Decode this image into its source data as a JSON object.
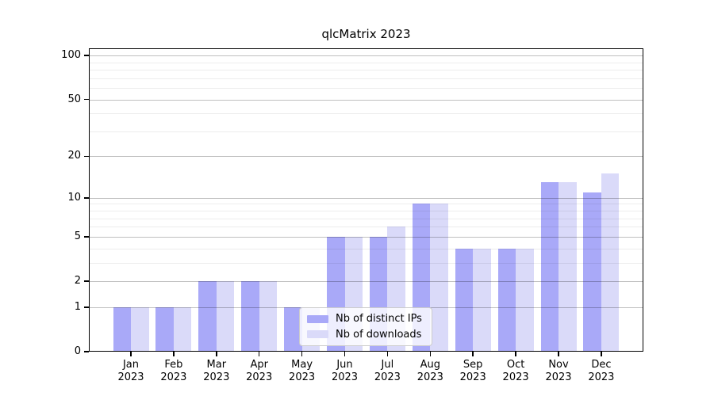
{
  "figure": {
    "background_color": "#ffffff",
    "axis_color": "#000000"
  },
  "chart_data": {
    "type": "bar",
    "title": "qlcMatrix 2023",
    "categories": [
      "Jan",
      "Feb",
      "Mar",
      "Apr",
      "May",
      "Jun",
      "Jul",
      "Aug",
      "Sep",
      "Oct",
      "Nov",
      "Dec"
    ],
    "category_year": "2023",
    "series": [
      {
        "name": "Nb of distinct IPs",
        "color": "#a9a9f8",
        "values": [
          1,
          1,
          2,
          2,
          1,
          5,
          5,
          9,
          4,
          4,
          13,
          11
        ]
      },
      {
        "name": "Nb of downloads",
        "color": "#dadaf9",
        "values": [
          1,
          1,
          2,
          2,
          1,
          5,
          6,
          9,
          4,
          4,
          13,
          15
        ]
      }
    ],
    "xlabel": "",
    "ylabel": "",
    "yscale": "log1p",
    "ylim": [
      0,
      113
    ],
    "yticks": [
      0,
      1,
      2,
      5,
      10,
      20,
      50,
      100
    ],
    "yticks_minor": [
      3,
      4,
      6,
      7,
      8,
      9,
      30,
      40,
      60,
      70,
      80,
      90
    ],
    "grid": "on, drawn over bars",
    "grid_major_color": "#bfbfbf",
    "grid_minor_color": "#ededed",
    "legend_position": "bottom-center"
  }
}
